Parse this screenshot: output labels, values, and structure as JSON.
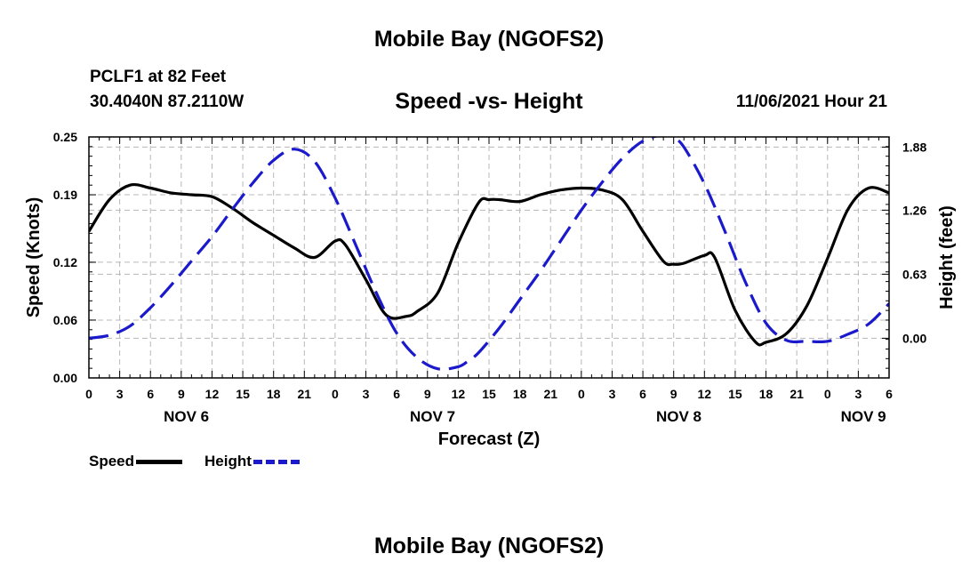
{
  "header": {
    "title": "Mobile Bay (NGOFS2)",
    "station": "PCLF1 at 82 Feet",
    "coords": "30.4040N  87.2110W",
    "subtitle": "Speed -vs- Height",
    "datetime": "11/06/2021 Hour 21"
  },
  "footer": {
    "title": "Mobile Bay (NGOFS2)"
  },
  "legend": {
    "speed": "Speed",
    "height": "Height"
  },
  "chart_data": {
    "type": "line",
    "title": "Speed -vs- Height",
    "xlabel": "Forecast (Z)",
    "ylabel": "Speed (Knots)",
    "y2label": "Height (feet)",
    "xlim": [
      0,
      78
    ],
    "ylim": [
      0,
      0.25
    ],
    "y2lim": [
      -0.39,
      1.98
    ],
    "yticks": [
      "0.00",
      "0.06",
      "0.12",
      "0.19",
      "0.25"
    ],
    "y2ticks": [
      "0.00",
      "0.63",
      "1.26",
      "1.88"
    ],
    "xtick_labels": [
      "0",
      "3",
      "6",
      "9",
      "12",
      "15",
      "18",
      "21",
      "0",
      "3",
      "6",
      "9",
      "12",
      "15",
      "18",
      "21",
      "0",
      "3",
      "6",
      "9",
      "12",
      "15",
      "18",
      "21",
      "0",
      "3",
      "6"
    ],
    "day_labels": [
      {
        "x": 9.5,
        "label": "NOV 6"
      },
      {
        "x": 33.5,
        "label": "NOV 7"
      },
      {
        "x": 57.5,
        "label": "NOV 8"
      },
      {
        "x": 75.5,
        "label": "NOV 9"
      }
    ],
    "series": [
      {
        "name": "Speed",
        "axis": "left",
        "color": "#000000",
        "x": [
          0,
          2,
          4,
          6,
          8,
          10,
          12,
          14,
          16,
          18,
          20,
          22,
          24,
          25,
          27,
          29,
          31,
          32,
          34,
          36,
          38,
          39,
          40,
          42,
          44,
          46,
          48,
          50,
          52,
          54,
          56,
          57,
          58,
          60,
          61,
          63,
          65,
          66,
          68,
          70,
          72,
          74,
          76,
          78
        ],
        "y": [
          0.152,
          0.185,
          0.2,
          0.197,
          0.192,
          0.19,
          0.188,
          0.176,
          0.161,
          0.148,
          0.135,
          0.125,
          0.142,
          0.138,
          0.102,
          0.065,
          0.064,
          0.069,
          0.088,
          0.14,
          0.182,
          0.185,
          0.185,
          0.183,
          0.19,
          0.195,
          0.197,
          0.195,
          0.185,
          0.152,
          0.121,
          0.118,
          0.119,
          0.127,
          0.125,
          0.07,
          0.037,
          0.037,
          0.046,
          0.075,
          0.124,
          0.175,
          0.197,
          0.192
        ]
      },
      {
        "name": "Height",
        "axis": "right",
        "color": "#1a1acc",
        "dashed": true,
        "x": [
          0,
          2,
          4,
          6,
          8,
          10,
          12,
          14,
          16,
          18,
          20,
          22,
          24,
          26,
          28,
          30,
          32,
          34,
          36,
          37,
          38,
          40,
          42,
          44,
          46,
          48,
          50,
          52,
          54,
          56,
          57,
          58,
          60,
          62,
          64,
          66,
          68,
          70,
          72,
          74,
          76,
          78
        ],
        "y": [
          0.0,
          0.03,
          0.12,
          0.3,
          0.52,
          0.76,
          1.0,
          1.27,
          1.53,
          1.75,
          1.86,
          1.74,
          1.38,
          0.92,
          0.45,
          0.05,
          -0.19,
          -0.3,
          -0.28,
          -0.22,
          -0.14,
          0.1,
          0.38,
          0.66,
          0.96,
          1.26,
          1.53,
          1.77,
          1.94,
          2.0,
          1.97,
          1.88,
          1.52,
          1.05,
          0.55,
          0.15,
          -0.02,
          -0.03,
          -0.03,
          0.04,
          0.14,
          0.34
        ]
      }
    ]
  }
}
